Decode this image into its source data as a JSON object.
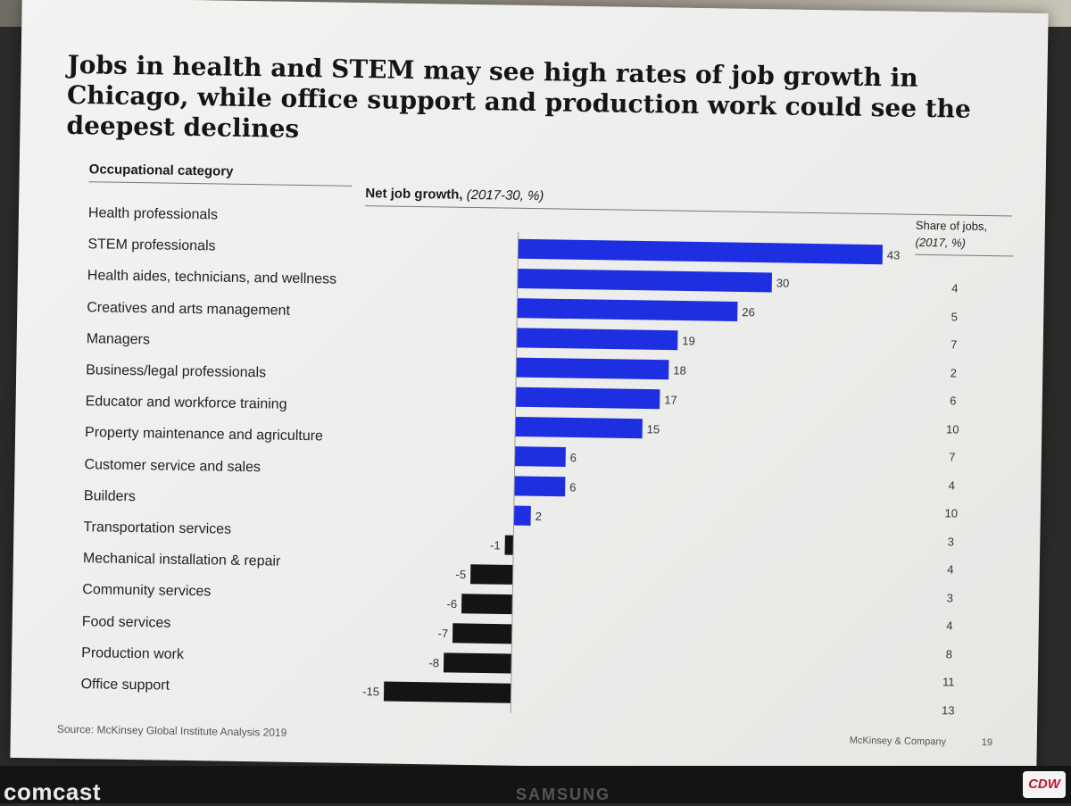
{
  "title": "Jobs in health and STEM may see high rates of job growth in Chicago, while office support and production work could see the deepest declines",
  "column_headers": {
    "category": "Occupational category",
    "growth_label": "Net job growth,",
    "growth_unit": "(2017-30, %)",
    "share_label": "Share of jobs,",
    "share_unit": "(2017, %)"
  },
  "chart_data": {
    "type": "bar",
    "orientation": "horizontal",
    "title": "Jobs in health and STEM may see high rates of job growth in Chicago, while office support and production work could see the deepest declines",
    "xlabel": "Net job growth, (2017-30, %)",
    "categories": [
      "Health professionals",
      "STEM professionals",
      "Health aides, technicians, and wellness",
      "Creatives and arts management",
      "Managers",
      "Business/legal professionals",
      "Educator and workforce training",
      "Property maintenance and agriculture",
      "Customer service and sales",
      "Builders",
      "Transportation services",
      "Mechanical installation & repair",
      "Community services",
      "Food services",
      "Production work",
      "Office support"
    ],
    "series": [
      {
        "name": "Net job growth, (2017-30, %)",
        "values": [
          43,
          30,
          26,
          19,
          18,
          17,
          15,
          6,
          6,
          2,
          -1,
          -5,
          -6,
          -7,
          -8,
          -15
        ]
      },
      {
        "name": "Share of jobs, (2017, %)",
        "values": [
          4,
          5,
          7,
          2,
          6,
          10,
          7,
          4,
          10,
          3,
          4,
          3,
          4,
          8,
          11,
          13
        ]
      }
    ],
    "xlim": [
      -15,
      43
    ],
    "grid": false,
    "legend": "none",
    "colors": {
      "positive": "#1d2fe0",
      "negative": "#141414"
    }
  },
  "footer": {
    "source": "Source: McKinsey Global Institute Analysis 2019",
    "brand": "McKinsey & Company",
    "page": "19"
  },
  "venue_logos": {
    "left": "comcast",
    "middle": "SAMSUNG",
    "right": "CDW"
  }
}
